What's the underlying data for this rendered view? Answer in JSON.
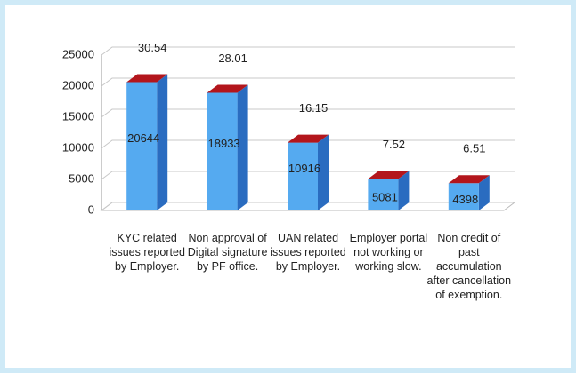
{
  "chart_data": {
    "type": "bar3d",
    "categories": [
      "KYC related issues reported by Employer.",
      "Non approval of Digital signature by PF office.",
      "UAN related issues reported by Employer.",
      "Employer portal not working or working slow.",
      "Non credit of past accumulation after cancellation of exemption."
    ],
    "values": [
      20644,
      18933,
      10916,
      5081,
      4398
    ],
    "annotations": [
      "30.54",
      "28.01",
      "16.15",
      "7.52",
      "6.51"
    ],
    "color": "#55aaf0",
    "side_color": "#2a6cc0",
    "top_color": "#b3161c",
    "ylim": [
      0,
      25000
    ],
    "yticks": [
      0,
      5000,
      10000,
      15000,
      20000,
      25000
    ],
    "grid": true
  }
}
